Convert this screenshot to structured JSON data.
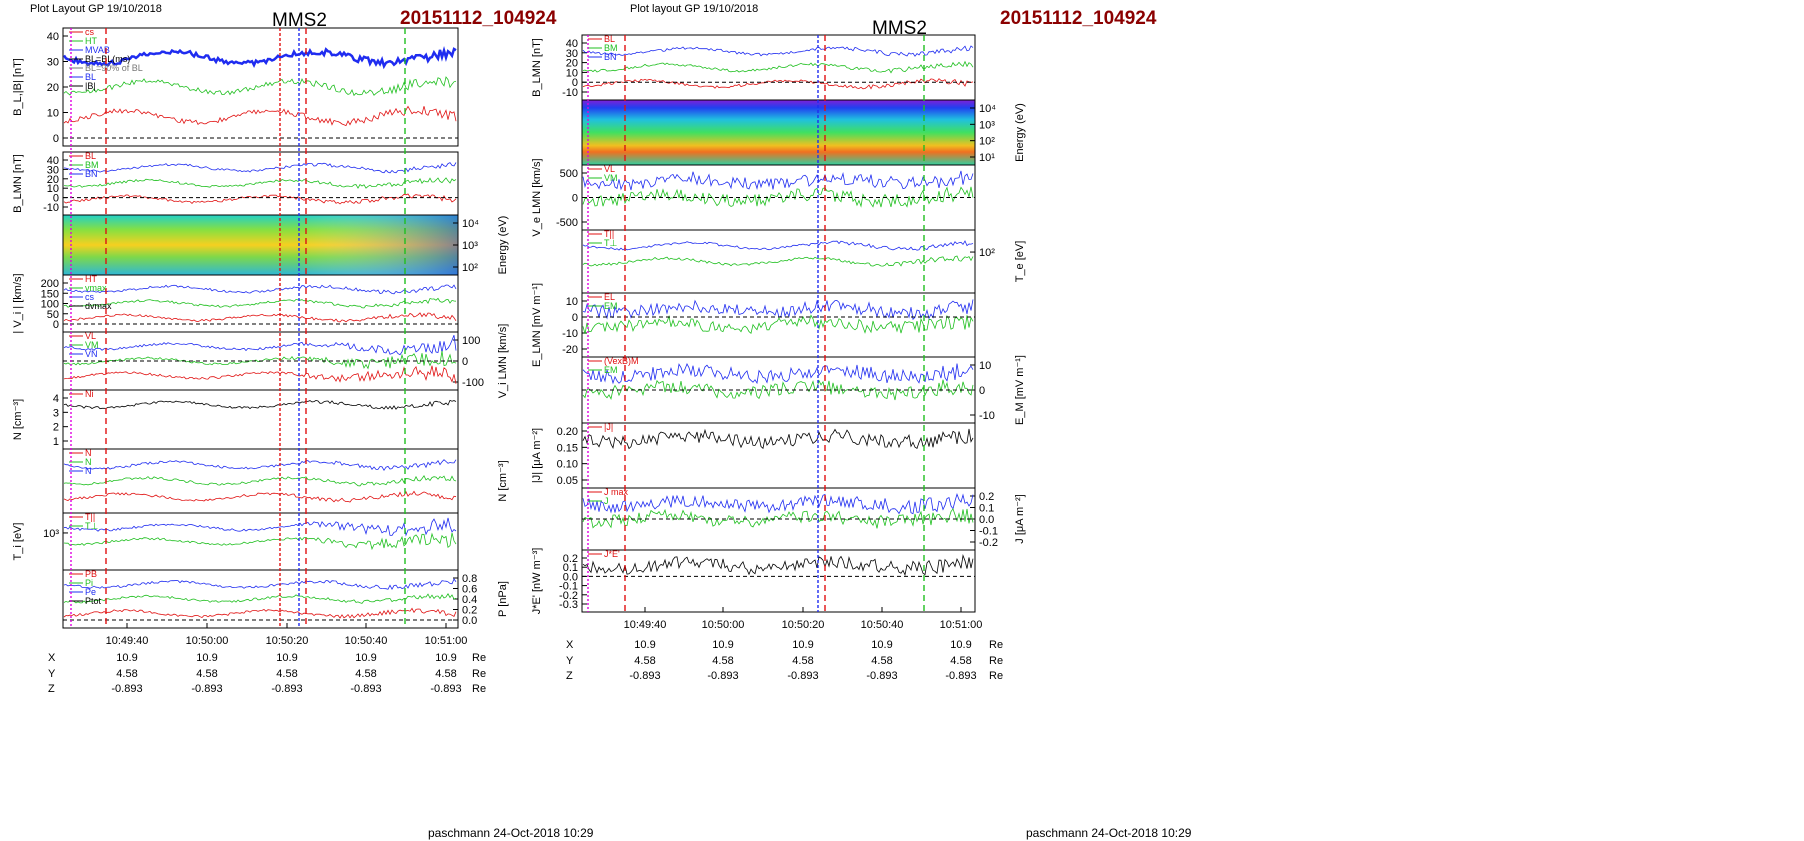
{
  "colors": {
    "blue": "#1f2cf0",
    "red": "#e01010",
    "green": "#1fbf1f",
    "black": "#000000",
    "magenta": "#e000e0",
    "darkred": "#8b0000",
    "gray": "#777777"
  },
  "layouts": [
    {
      "header": {
        "plot_layout": "Plot Layout GP 19/10/2018",
        "title": "MMS2",
        "event_id": "20151112_104924"
      },
      "time_ticks": [
        "10:49:40",
        "10:50:00",
        "10:50:20",
        "10:50:40",
        "10:51:00"
      ],
      "position": {
        "rows": [
          {
            "label": "X",
            "values": [
              "10.9",
              "10.9",
              "10.9",
              "10.9",
              "10.9"
            ],
            "unit": "Re"
          },
          {
            "label": "Y",
            "values": [
              "4.58",
              "4.58",
              "4.58",
              "4.58",
              "4.58"
            ],
            "unit": "Re"
          },
          {
            "label": "Z",
            "values": [
              "-0.893",
              "-0.893",
              "-0.893",
              "-0.893",
              "-0.893"
            ],
            "unit": "Re"
          }
        ]
      },
      "footer": "paschmann 24-Oct-2018 10:29",
      "panels": [
        {
          "ylabel": "B_L,|B| [nT]",
          "side": "left",
          "ticks": [
            "40",
            "30",
            "20",
            "10",
            "0"
          ],
          "legend": [
            "cs",
            "HT",
            "MVAB",
            "BL=BL(ms)",
            "BL=90% of BL",
            "BL",
            "|B|"
          ]
        },
        {
          "ylabel": "B_LMN [nT]",
          "side": "left",
          "ticks": [
            "40",
            "30",
            "20",
            "10",
            "0",
            "-10"
          ],
          "legend": [
            "BL",
            "BM",
            "BN"
          ]
        },
        {
          "ylabel": "Energy (eV)",
          "side": "right",
          "ticks": [
            "10⁴",
            "10³",
            "10²"
          ],
          "legend": []
        },
        {
          "ylabel": "| V_i | [km/s]",
          "side": "left",
          "ticks": [
            "200",
            "150",
            "100",
            "50",
            "0"
          ],
          "legend": [
            "HT",
            "vmax",
            "cs",
            "dvmax"
          ]
        },
        {
          "ylabel": "V_i LMN [km/s]",
          "side": "right",
          "ticks": [
            "100",
            "0",
            "-100"
          ],
          "legend": [
            "VL",
            "VM",
            "VN"
          ]
        },
        {
          "ylabel": "N [cm⁻³]",
          "side": "left",
          "ticks": [
            "4",
            "3",
            "2",
            "1"
          ],
          "legend": [
            "Ni"
          ]
        },
        {
          "ylabel": "N [cm⁻³]",
          "side": "right",
          "ticks": [],
          "legend": [
            "N",
            "N",
            "N"
          ]
        },
        {
          "ylabel": "T_i [eV]",
          "side": "left",
          "ticks": [
            "10³"
          ],
          "legend": [
            "T||",
            "T⊥"
          ]
        },
        {
          "ylabel": "P [nPa]",
          "side": "right",
          "ticks": [
            "0.8",
            "0.6",
            "0.4",
            "0.2",
            "0.0"
          ],
          "legend": [
            "PB",
            "Pi",
            "Pe",
            "Ptot"
          ]
        }
      ]
    },
    {
      "header": {
        "plot_layout": "Plot layout GP 19/10/2018",
        "title": "MMS2",
        "event_id": "20151112_104924"
      },
      "time_ticks": [
        "10:49:40",
        "10:50:00",
        "10:50:20",
        "10:50:40",
        "10:51:00"
      ],
      "position": {
        "rows": [
          {
            "label": "X",
            "values": [
              "10.9",
              "10.9",
              "10.9",
              "10.9",
              "10.9"
            ],
            "unit": "Re"
          },
          {
            "label": "Y",
            "values": [
              "4.58",
              "4.58",
              "4.58",
              "4.58",
              "4.58"
            ],
            "unit": "Re"
          },
          {
            "label": "Z",
            "values": [
              "-0.893",
              "-0.893",
              "-0.893",
              "-0.893",
              "-0.893"
            ],
            "unit": "Re"
          }
        ]
      },
      "footer": "paschmann 24-Oct-2018 10:29",
      "panels": [
        {
          "ylabel": "B_LMN [nT]",
          "side": "left",
          "ticks": [
            "40",
            "30",
            "20",
            "10",
            "0",
            "-10"
          ],
          "legend": [
            "BL",
            "BM",
            "BN"
          ]
        },
        {
          "ylabel": "Energy (eV)",
          "side": "right",
          "ticks": [
            "10⁴",
            "10³",
            "10²",
            "10¹"
          ],
          "legend": []
        },
        {
          "ylabel": "V_e LMN [km/s]",
          "side": "left",
          "ticks": [
            "500",
            "0",
            "-500"
          ],
          "legend": [
            "VL",
            "VM"
          ]
        },
        {
          "ylabel": "T_e [eV]",
          "side": "right",
          "ticks": [
            "10²"
          ],
          "legend": [
            "T||",
            "T⊥"
          ]
        },
        {
          "ylabel": "E_LMN [mV m⁻¹]",
          "side": "left",
          "ticks": [
            "10",
            "0",
            "-10",
            "-20"
          ],
          "legend": [
            "EL",
            "EM"
          ]
        },
        {
          "ylabel": "E_M [mV m⁻¹]",
          "side": "right",
          "ticks": [
            "10",
            "0",
            "-10"
          ],
          "legend": [
            "(VexB)M",
            "EM"
          ]
        },
        {
          "ylabel": "|J| [μA m⁻²]",
          "side": "left",
          "ticks": [
            "0.20",
            "0.15",
            "0.10",
            "0.05"
          ],
          "legend": [
            "|J|"
          ]
        },
        {
          "ylabel": "J [μA m⁻²]",
          "side": "right",
          "ticks": [
            "0.2",
            "0.1",
            "0.0",
            "-0.1",
            "-0.2"
          ],
          "legend": [
            "J max",
            "J"
          ]
        },
        {
          "ylabel": "J*E' [nW m⁻³]",
          "side": "left",
          "ticks": [
            "0.2",
            "0.1",
            "0.0",
            "-0.1",
            "-0.2",
            "-0.3"
          ],
          "legend": [
            "J*E'"
          ]
        }
      ]
    }
  ],
  "chart_data": [
    {
      "type": "line",
      "title": "MMS2",
      "subtitle": "20151112_104924",
      "x": [
        "10:49:40",
        "10:50:00",
        "10:50:20",
        "10:50:40",
        "10:51:00"
      ],
      "panels": 9
    },
    {
      "type": "line",
      "title": "MMS2",
      "subtitle": "20151112_104924",
      "x": [
        "10:49:40",
        "10:50:00",
        "10:50:20",
        "10:50:40",
        "10:51:00"
      ],
      "panels": 9
    }
  ]
}
